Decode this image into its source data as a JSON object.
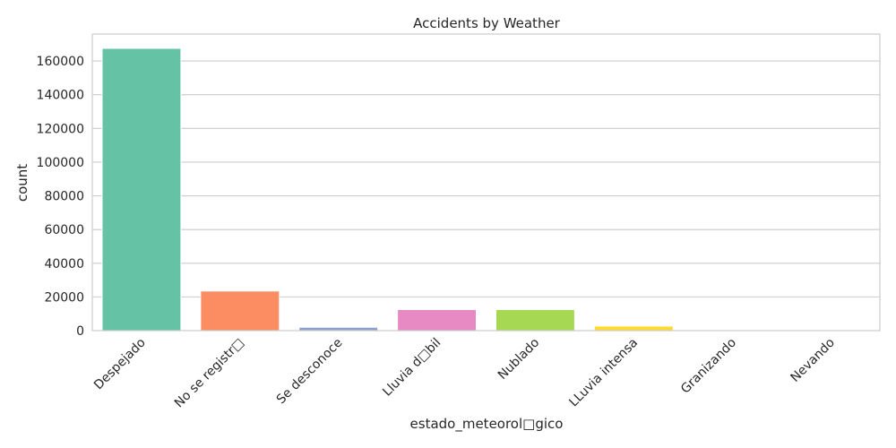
{
  "chart_data": {
    "type": "bar",
    "title": "Accidents by Weather",
    "xlabel": "estado_meteorol□gico",
    "ylabel": "count",
    "categories": [
      "Despejado",
      "No se registr□",
      "Se desconoce",
      "Lluvia d□bil",
      "Nublado",
      "LLuvia intensa",
      "Granizando",
      "Nevando"
    ],
    "values": [
      167500,
      23500,
      2000,
      12500,
      12500,
      2700,
      150,
      100
    ],
    "colors": [
      "#66c2a5",
      "#fc8d62",
      "#8da0cb",
      "#e78ac3",
      "#a6d854",
      "#ffd92f",
      "#e5c494",
      "#b3b3b3"
    ],
    "ylim": [
      0,
      176000
    ],
    "yticks": [
      0,
      20000,
      40000,
      60000,
      80000,
      100000,
      120000,
      140000,
      160000
    ],
    "grid": true,
    "legend": "none"
  }
}
